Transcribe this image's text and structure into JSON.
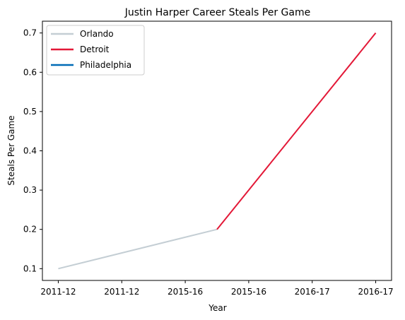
{
  "chart_data": {
    "type": "line",
    "title": "Justin Harper  Career Steals Per Game",
    "xlabel": "Year",
    "ylabel": "Steals Per Game",
    "xtick_labels": [
      "2011-12",
      "2011-12",
      "2015-16",
      "2015-16",
      "2016-17",
      "2016-17"
    ],
    "xlim": [
      -0.1,
      2.1
    ],
    "ylim": [
      0.07,
      0.73
    ],
    "yticks": [
      0.1,
      0.2,
      0.3,
      0.4,
      0.5,
      0.6,
      0.7
    ],
    "ytick_labels": [
      "0.1",
      "0.2",
      "0.3",
      "0.4",
      "0.5",
      "0.6",
      "0.7"
    ],
    "grid": false,
    "legend_position": "top-left",
    "series": [
      {
        "name": "Orlando",
        "color": "#c4ced4",
        "x": [
          0,
          1
        ],
        "y": [
          0.1,
          0.2
        ]
      },
      {
        "name": "Detroit",
        "color": "#e31837",
        "x": [
          1,
          2
        ],
        "y": [
          0.2,
          0.7
        ]
      },
      {
        "name": "Philadelphia",
        "color": "#006bb6",
        "x": [],
        "y": []
      }
    ]
  }
}
